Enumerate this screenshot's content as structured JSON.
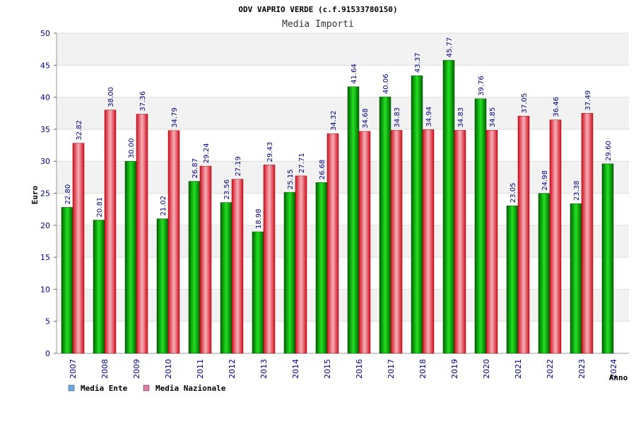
{
  "chart_data": {
    "type": "bar",
    "title": "ODV VAPRIO VERDE (c.f.91533780150)",
    "subtitle": "Media Importi",
    "xlabel": "Anno",
    "ylabel": "Euro",
    "ylim": [
      0,
      50
    ],
    "yticks": [
      0,
      5,
      10,
      15,
      20,
      25,
      30,
      35,
      40,
      45,
      50
    ],
    "grid": true,
    "legend_position": "bottom-left",
    "categories": [
      "2007",
      "2008",
      "2009",
      "2010",
      "2011",
      "2012",
      "2013",
      "2014",
      "2015",
      "2016",
      "2017",
      "2018",
      "2019",
      "2020",
      "2021",
      "2022",
      "2023",
      "2024"
    ],
    "series": [
      {
        "name": "Media Ente",
        "color": "#00a000",
        "legend_color": "#6aa7e6",
        "values": [
          22.8,
          20.81,
          30.0,
          21.02,
          26.87,
          23.56,
          18.98,
          25.15,
          26.68,
          41.64,
          40.06,
          43.37,
          45.77,
          39.76,
          23.05,
          24.98,
          23.38,
          29.6
        ],
        "labels": [
          "22.80",
          "20.81",
          "30.00",
          "21.02",
          "26.87",
          "23.56",
          "18.98",
          "25.15",
          "26.68",
          "41.64",
          "40.06",
          "43.37",
          "45.77",
          "39.76",
          "23.05",
          "24.98",
          "23.38",
          "29.60"
        ]
      },
      {
        "name": "Media Nazionale",
        "color": "#e02020",
        "legend_color": "#e07aa8",
        "values": [
          32.82,
          38.0,
          37.36,
          34.79,
          29.24,
          27.19,
          29.43,
          27.71,
          34.32,
          34.68,
          34.83,
          34.94,
          34.83,
          34.85,
          37.05,
          36.46,
          37.49,
          null
        ],
        "labels": [
          "32.82",
          "38.00",
          "37.36",
          "34.79",
          "29.24",
          "27.19",
          "29.43",
          "27.71",
          "34.32",
          "34.68",
          "34.83",
          "34.94",
          "34.83",
          "34.85",
          "37.05",
          "36.46",
          "37.49",
          null
        ]
      }
    ]
  }
}
